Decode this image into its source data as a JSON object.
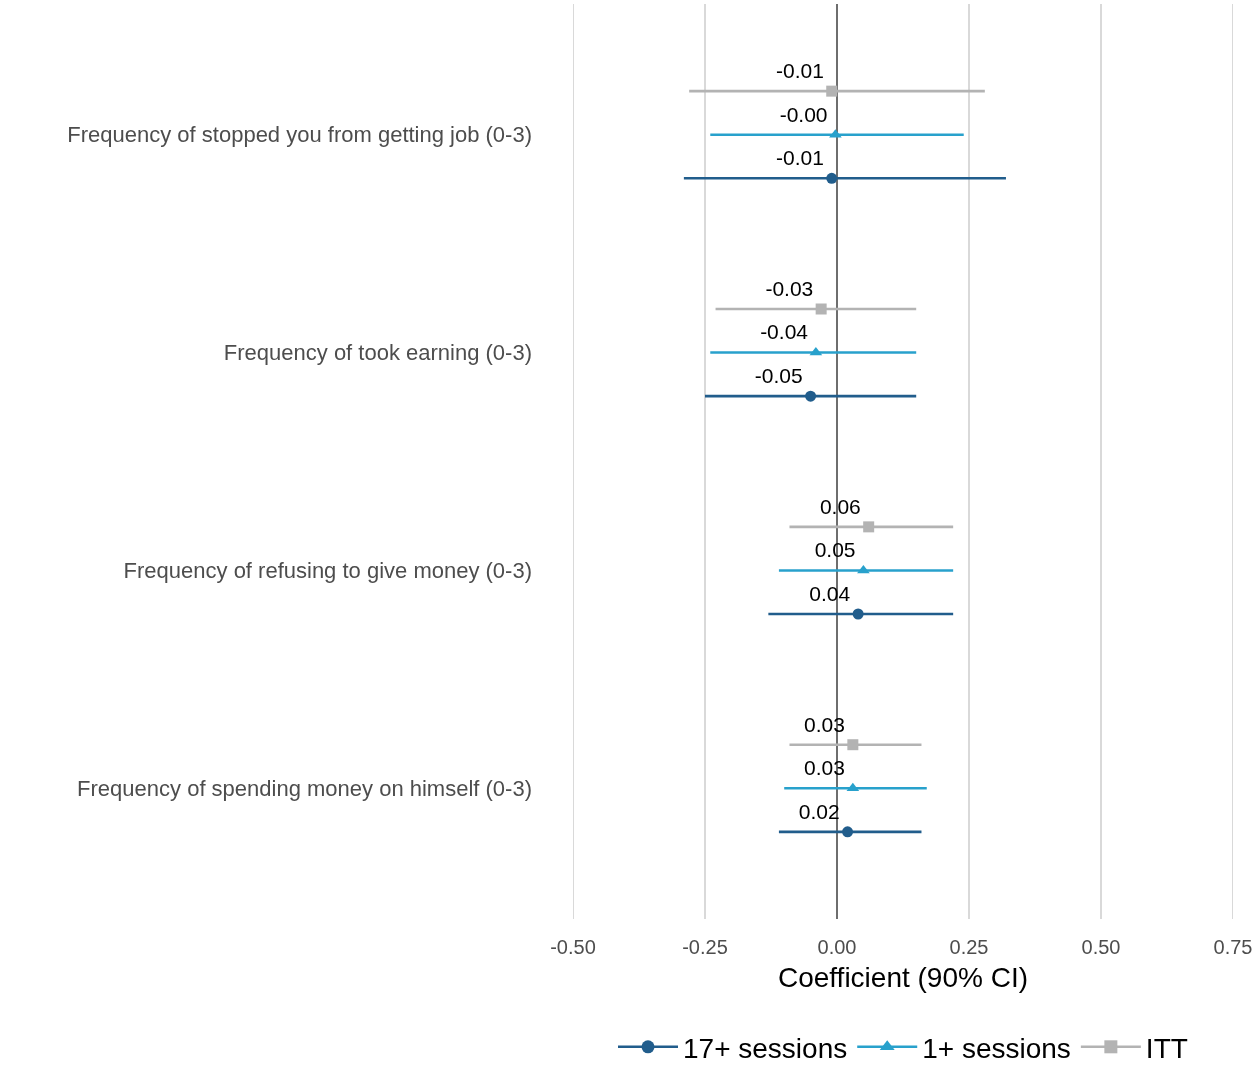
{
  "chart_data": {
    "type": "scatter",
    "orientation": "horizontal",
    "xlabel": "Coefficient (90% CI)",
    "categories": [
      "Frequency of stopped you from getting job (0-3)",
      "Frequency of took earning (0-3)",
      "Frequency of refusing to give money (0-3)",
      "Frequency of spending money on himself (0-3)"
    ],
    "series": [
      {
        "name": "17+ sessions",
        "color": "#215d8c",
        "marker": "circle",
        "values": [
          -0.01,
          -0.05,
          0.04,
          0.02
        ],
        "errors": [
          [
            -0.29,
            0.32
          ],
          [
            -0.25,
            0.15
          ],
          [
            -0.13,
            0.22
          ],
          [
            -0.11,
            0.16
          ]
        ],
        "value_labels": [
          "-0.01",
          "-0.05",
          "0.04",
          "0.02"
        ]
      },
      {
        "name": "1+ sessions",
        "color": "#28a1cc",
        "marker": "triangle",
        "values": [
          -0.003,
          -0.04,
          0.05,
          0.03
        ],
        "errors": [
          [
            -0.24,
            0.24
          ],
          [
            -0.24,
            0.15
          ],
          [
            -0.11,
            0.22
          ],
          [
            -0.1,
            0.17
          ]
        ],
        "value_labels": [
          "-0.00",
          "-0.04",
          "0.05",
          "0.03"
        ]
      },
      {
        "name": "ITT",
        "color": "#b3b3b3",
        "marker": "square",
        "values": [
          -0.01,
          -0.03,
          0.06,
          0.03
        ],
        "errors": [
          [
            -0.28,
            0.28
          ],
          [
            -0.23,
            0.15
          ],
          [
            -0.09,
            0.22
          ],
          [
            -0.09,
            0.16
          ]
        ],
        "value_labels": [
          "-0.01",
          "-0.03",
          "0.06",
          "0.03"
        ]
      }
    ],
    "xlim": [
      -0.5,
      0.75
    ],
    "xticks": [
      {
        "value": -0.5,
        "label": "-0.50"
      },
      {
        "value": -0.25,
        "label": "-0.25"
      },
      {
        "value": 0,
        "label": "0.00"
      },
      {
        "value": 0.25,
        "label": "0.25"
      },
      {
        "value": 0.5,
        "label": "0.50"
      },
      {
        "value": 0.75,
        "label": "0.75"
      }
    ],
    "ref_lines": [
      {
        "axis": "x",
        "value": 0,
        "color": "#6e6e6e"
      }
    ],
    "grid": "x",
    "legend": "bottom"
  }
}
